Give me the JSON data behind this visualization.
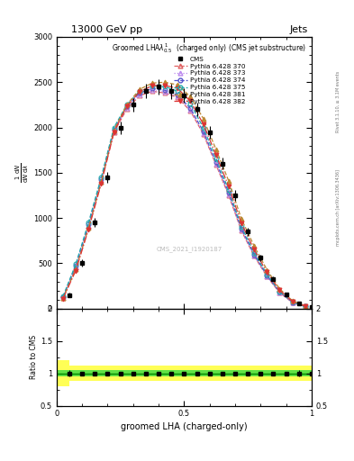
{
  "title_top": "13000 GeV pp",
  "title_right": "Jets",
  "plot_title": "Groomed LHA$\\lambda^{1}_{0.5}$  (charged only) (CMS jet substructure)",
  "watermark": "CMS_2021_I1920187",
  "right_label": "mcplots.cern.ch [arXiv:1306.3436]",
  "rivet_label": "Rivet 3.1.10, ≥ 3.1M events",
  "xlabel": "groomed LHA (charged-only)",
  "ylabel": "$\\frac{1}{\\mathrm{d}N}\\frac{\\mathrm{d}N}{\\mathrm{d}\\lambda}$",
  "ylabel_ratio": "Ratio to CMS",
  "xlim": [
    0,
    1
  ],
  "ylim_main": [
    0,
    3000
  ],
  "ylim_ratio": [
    0.5,
    2.0
  ],
  "cms_x": [
    0.05,
    0.1,
    0.15,
    0.2,
    0.25,
    0.3,
    0.35,
    0.4,
    0.45,
    0.5,
    0.55,
    0.6,
    0.65,
    0.7,
    0.75,
    0.8,
    0.85,
    0.9,
    0.95,
    1.0
  ],
  "cms_y": [
    150,
    500,
    950,
    1450,
    2000,
    2250,
    2400,
    2450,
    2400,
    2350,
    2200,
    1950,
    1600,
    1250,
    850,
    560,
    330,
    160,
    60,
    20
  ],
  "cms_yerr_stat": [
    25,
    40,
    50,
    60,
    70,
    75,
    80,
    85,
    85,
    80,
    75,
    70,
    65,
    55,
    45,
    35,
    25,
    15,
    9,
    5
  ],
  "pythia_x": [
    0.025,
    0.075,
    0.125,
    0.175,
    0.225,
    0.275,
    0.325,
    0.375,
    0.425,
    0.475,
    0.525,
    0.575,
    0.625,
    0.675,
    0.725,
    0.775,
    0.825,
    0.875,
    0.925,
    0.975
  ],
  "pythia_370": [
    120,
    450,
    900,
    1400,
    1950,
    2200,
    2350,
    2400,
    2380,
    2330,
    2180,
    1930,
    1590,
    1250,
    860,
    580,
    355,
    175,
    68,
    22
  ],
  "pythia_373": [
    125,
    460,
    910,
    1410,
    1960,
    2210,
    2360,
    2410,
    2390,
    2340,
    2190,
    1940,
    1600,
    1260,
    868,
    586,
    360,
    178,
    70,
    23
  ],
  "pythia_374": [
    130,
    475,
    930,
    1430,
    1980,
    2230,
    2380,
    2430,
    2410,
    2360,
    2210,
    1960,
    1620,
    1280,
    882,
    598,
    368,
    183,
    72,
    24
  ],
  "pythia_375": [
    135,
    490,
    950,
    1450,
    2000,
    2250,
    2400,
    2460,
    2450,
    2400,
    2260,
    2000,
    1660,
    1310,
    906,
    618,
    380,
    190,
    75,
    25
  ],
  "pythia_381": [
    115,
    435,
    890,
    1400,
    1970,
    2250,
    2420,
    2490,
    2500,
    2470,
    2340,
    2100,
    1760,
    1410,
    990,
    690,
    430,
    218,
    88,
    30
  ],
  "pythia_382": [
    110,
    420,
    875,
    1380,
    1950,
    2230,
    2395,
    2460,
    2465,
    2430,
    2290,
    2040,
    1700,
    1350,
    940,
    650,
    402,
    202,
    80,
    27
  ],
  "colors": {
    "370": "#e06060",
    "373": "#bb88ee",
    "374": "#5555cc",
    "375": "#22aaaa",
    "381": "#bb8833",
    "382": "#dd3333"
  },
  "linestyles": {
    "370": "--",
    "373": ":",
    "374": "--",
    "375": "--",
    "381": "--",
    "382": "-."
  },
  "markers": {
    "370": "^",
    "373": "^",
    "374": "o",
    "375": "o",
    "381": "^",
    "382": "v"
  },
  "markerfilled": {
    "370": false,
    "373": false,
    "374": false,
    "375": false,
    "381": true,
    "382": true
  },
  "ratio_green_lo": 0.95,
  "ratio_green_hi": 1.05,
  "ratio_yellow_lo": 0.88,
  "ratio_yellow_hi": 1.12,
  "ratio_yellow_lo_bins": [
    0.8,
    0.88,
    0.88,
    0.88,
    0.88,
    0.88,
    0.88,
    0.88,
    0.88,
    0.88,
    0.88,
    0.88,
    0.88,
    0.88,
    0.88,
    0.88,
    0.88,
    0.88,
    0.88,
    0.88
  ],
  "ratio_yellow_hi_bins": [
    1.2,
    1.12,
    1.12,
    1.12,
    1.12,
    1.12,
    1.12,
    1.12,
    1.12,
    1.12,
    1.12,
    1.12,
    1.12,
    1.12,
    1.12,
    1.12,
    1.12,
    1.12,
    1.12,
    1.12
  ]
}
